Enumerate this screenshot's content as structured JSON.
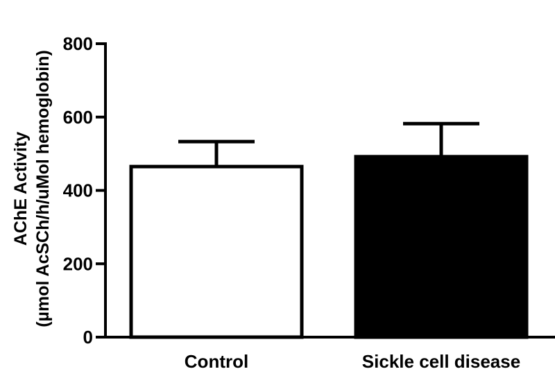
{
  "chart_data": {
    "type": "bar",
    "categories": [
      "Control",
      "Sickle cell disease"
    ],
    "values": [
      465,
      492
    ],
    "errors": [
      68,
      90
    ],
    "ylabel_lines": [
      "AChE Activity",
      "(µmol AcSCh/h/uMol hemoglobin)"
    ],
    "ylim": [
      0,
      800
    ],
    "yticks": [
      0,
      200,
      400,
      600,
      800
    ],
    "grid": false,
    "legend": "none",
    "colors": {
      "fills": [
        "#ffffff",
        "#000000"
      ],
      "stroke": "#000000"
    }
  }
}
